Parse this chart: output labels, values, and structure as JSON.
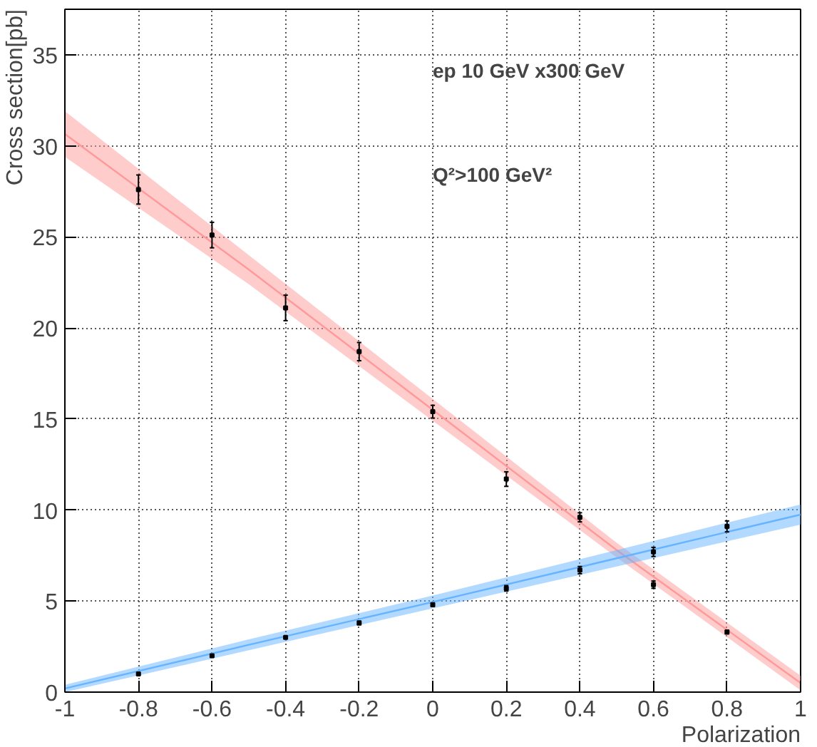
{
  "chart_data": {
    "type": "line",
    "xlabel": "Polarization",
    "ylabel": "Cross section[pb]",
    "annotations": [
      "ep 10 GeV x300 GeV",
      "Q²>100 GeV²"
    ],
    "xlim": [
      -1,
      1
    ],
    "ylim": [
      0,
      37.5
    ],
    "xticks": [
      -1,
      -0.8,
      -0.6,
      -0.4,
      -0.2,
      0,
      0.2,
      0.4,
      0.6,
      0.8,
      1
    ],
    "yticks": [
      0,
      5,
      10,
      15,
      20,
      25,
      30,
      35
    ],
    "grid": true,
    "series": [
      {
        "color": "#ff9999",
        "x": [
          -1,
          -0.5,
          0,
          0.5,
          1
        ],
        "values": [
          30.65,
          23.2,
          15.5,
          7.8,
          0.5
        ],
        "lower": [
          29.4,
          22.4,
          14.9,
          7.4,
          0.1
        ],
        "upper": [
          31.9,
          24.0,
          16.1,
          8.2,
          0.9
        ]
      },
      {
        "color": "#66b3ff",
        "x": [
          -1,
          -0.5,
          0,
          0.5,
          1
        ],
        "values": [
          0.2,
          2.6,
          4.95,
          7.35,
          9.75
        ],
        "lower": [
          0,
          2.3,
          4.6,
          6.9,
          9.2
        ],
        "upper": [
          0.4,
          2.9,
          5.3,
          7.8,
          10.3
        ]
      },
      {
        "type": "scatter",
        "marker": "square",
        "color": "#000000",
        "x": [
          -0.8,
          -0.6,
          -0.4,
          -0.2,
          0,
          0.2,
          0.4,
          0.6,
          0.8
        ],
        "values": [
          27.6,
          25.1,
          21.1,
          18.7,
          15.4,
          11.7,
          9.6,
          5.9,
          3.3
        ],
        "errors": [
          0.8,
          0.7,
          0.7,
          0.5,
          0.35,
          0.4,
          0.25,
          0.2,
          0.1
        ]
      },
      {
        "type": "scatter",
        "marker": "square",
        "color": "#000000",
        "x": [
          -0.8,
          -0.6,
          -0.4,
          -0.2,
          0,
          0.2,
          0.4,
          0.6,
          0.8
        ],
        "values": [
          1.0,
          2.0,
          3.0,
          3.8,
          4.8,
          5.7,
          6.7,
          7.7,
          9.1
        ],
        "errors": [
          0.05,
          0.05,
          0.05,
          0.1,
          0.1,
          0.15,
          0.2,
          0.25,
          0.3
        ]
      }
    ]
  }
}
